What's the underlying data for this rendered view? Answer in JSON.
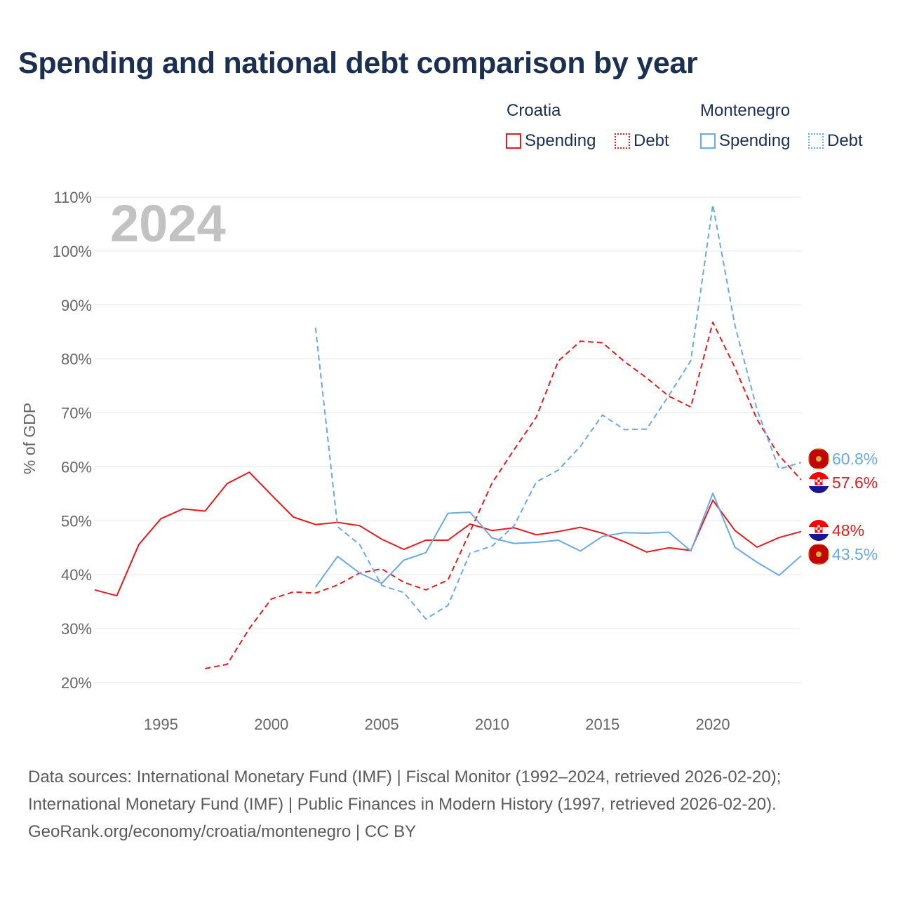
{
  "title": "Spending and national debt comparison by year",
  "legend": {
    "groups": [
      {
        "country": "Croatia",
        "color": "#e5191e",
        "items": [
          {
            "label": "Spending",
            "style": "solid"
          },
          {
            "label": "Debt",
            "style": "dotted"
          }
        ]
      },
      {
        "country": "Montenegro",
        "color": "#6aa9e2",
        "items": [
          {
            "label": "Spending",
            "style": "solid"
          },
          {
            "label": "Debt",
            "style": "dotted"
          }
        ]
      }
    ]
  },
  "chart_data": {
    "type": "line",
    "year_label": "2024",
    "ylabel": "% of GDP",
    "xlim": [
      1992,
      2024
    ],
    "ylim": [
      20,
      110
    ],
    "x_ticks": [
      1995,
      2000,
      2005,
      2010,
      2015,
      2020
    ],
    "y_ticks": [
      20,
      30,
      40,
      50,
      60,
      70,
      80,
      90,
      100,
      110
    ],
    "y_tick_labels": [
      "20%",
      "30%",
      "40%",
      "50%",
      "60%",
      "70%",
      "80%",
      "90%",
      "100%",
      "110%"
    ],
    "series": [
      {
        "name": "Croatia Spending",
        "color": "#e5191e",
        "dash": "solid",
        "end_label": "48%",
        "x": [
          1992,
          1993,
          1994,
          1995,
          1996,
          1997,
          1998,
          1999,
          2000,
          2001,
          2002,
          2003,
          2004,
          2005,
          2006,
          2007,
          2008,
          2009,
          2010,
          2011,
          2012,
          2013,
          2014,
          2015,
          2016,
          2017,
          2018,
          2019,
          2020,
          2021,
          2022,
          2023,
          2024
        ],
        "y": [
          37.2,
          36.1,
          45.6,
          50.4,
          52.2,
          51.8,
          56.9,
          59.0,
          54.8,
          50.7,
          49.3,
          49.7,
          49.1,
          46.6,
          44.7,
          46.4,
          46.4,
          49.4,
          48.2,
          48.7,
          47.4,
          48.0,
          48.8,
          47.7,
          46.1,
          44.2,
          45.0,
          44.5,
          53.8,
          48.2,
          45.1,
          46.9,
          48.0
        ]
      },
      {
        "name": "Croatia Debt",
        "color": "#e5191e",
        "dash": "dashed",
        "end_label": "57.6%",
        "x": [
          1997,
          1998,
          1999,
          2000,
          2001,
          2002,
          2003,
          2004,
          2005,
          2006,
          2007,
          2008,
          2009,
          2010,
          2011,
          2012,
          2013,
          2014,
          2015,
          2016,
          2017,
          2018,
          2019,
          2020,
          2021,
          2022,
          2023,
          2024
        ],
        "y": [
          22.6,
          23.4,
          30.0,
          35.5,
          36.8,
          36.6,
          38.1,
          40.3,
          41.1,
          38.6,
          37.2,
          39.0,
          48.0,
          57.0,
          63.2,
          69.2,
          79.6,
          83.3,
          83.0,
          79.5,
          76.5,
          73.1,
          71.1,
          86.8,
          78.4,
          68.8,
          62.1,
          57.6
        ]
      },
      {
        "name": "Montenegro Spending",
        "color": "#6aa9e2",
        "dash": "solid",
        "end_label": "43.5%",
        "x": [
          2002,
          2003,
          2004,
          2005,
          2006,
          2007,
          2008,
          2009,
          2010,
          2011,
          2012,
          2013,
          2014,
          2015,
          2016,
          2017,
          2018,
          2019,
          2020,
          2021,
          2022,
          2023,
          2024
        ],
        "y": [
          37.7,
          43.4,
          40.3,
          38.4,
          42.7,
          44.1,
          51.4,
          51.6,
          46.8,
          45.8,
          46.0,
          46.4,
          44.4,
          47.1,
          47.8,
          47.7,
          47.9,
          44.4,
          55.1,
          45.1,
          42.3,
          39.9,
          43.5
        ]
      },
      {
        "name": "Montenegro Debt",
        "color": "#6aa9e2",
        "dash": "dashed",
        "end_label": "60.8%",
        "x": [
          2002,
          2003,
          2004,
          2005,
          2006,
          2007,
          2008,
          2009,
          2010,
          2011,
          2012,
          2013,
          2014,
          2015,
          2016,
          2017,
          2018,
          2019,
          2020,
          2021,
          2022,
          2023,
          2024
        ],
        "y": [
          85.8,
          48.9,
          45.6,
          38.0,
          36.7,
          31.8,
          34.3,
          44.0,
          45.3,
          49.1,
          57.2,
          59.4,
          63.8,
          69.6,
          66.9,
          67.0,
          73.2,
          79.7,
          108.6,
          86.2,
          70.6,
          59.6,
          60.8
        ]
      }
    ]
  },
  "footer": {
    "line1": "Data sources: International Monetary Fund (IMF) | Fiscal Monitor (1992–2024, retrieved 2026-02-20);",
    "line2": "International Monetary Fund (IMF) | Public Finances in Modern History (1997, retrieved 2026-02-20).",
    "line3": "GeoRank.org/economy/croatia/montenegro | CC BY"
  }
}
